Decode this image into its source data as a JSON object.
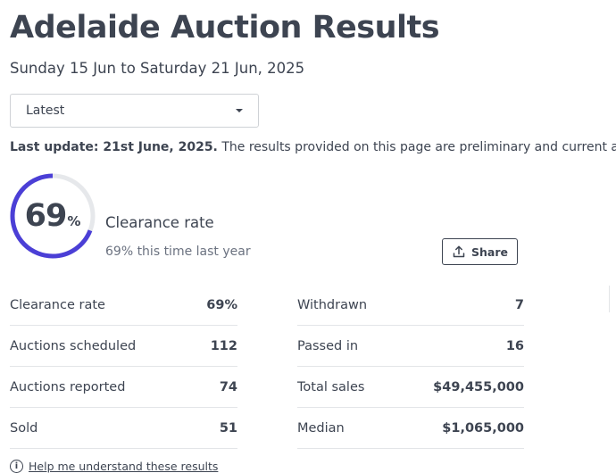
{
  "header": {
    "title": "Adelaide Auction Results",
    "date_range": "Sunday 15 Jun to Saturday 21 Jun, 2025"
  },
  "period_select": {
    "selected": "Latest"
  },
  "update_notice": {
    "label": "Last update: 21st June, 2025.",
    "text": " The results provided on this page are preliminary and current at the time"
  },
  "clearance": {
    "rate_value": 0.69,
    "number": "69",
    "unit": "%",
    "label": "Clearance rate",
    "last_year": "69% this time last year",
    "ring_color": "#4b3fd6",
    "track_color": "#e6e8eb"
  },
  "share_button": {
    "label": "Share",
    "icon": "upload-share-icon"
  },
  "stats_left": [
    {
      "label": "Clearance rate",
      "value": "69%"
    },
    {
      "label": "Auctions scheduled",
      "value": "112"
    },
    {
      "label": "Auctions reported",
      "value": "74"
    },
    {
      "label": "Sold",
      "value": "51"
    }
  ],
  "stats_right": [
    {
      "label": "Withdrawn",
      "value": "7"
    },
    {
      "label": "Passed in",
      "value": "16"
    },
    {
      "label": "Total sales",
      "value": "$49,455,000"
    },
    {
      "label": "Median",
      "value": "$1,065,000"
    }
  ],
  "help": {
    "icon": "info-icon",
    "label": "Help me understand these results"
  }
}
